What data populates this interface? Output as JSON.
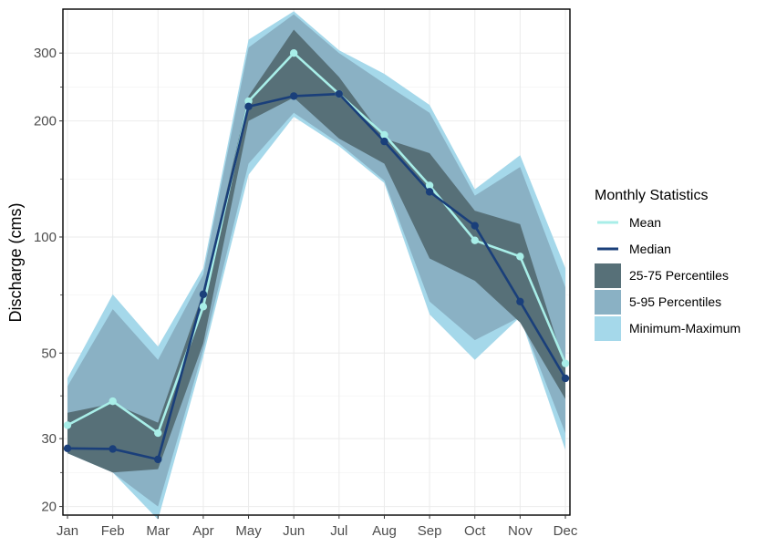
{
  "chart_data": {
    "type": "area",
    "title": "",
    "xlabel": "",
    "ylabel": "Discharge (cms)",
    "y_scale": "log",
    "ylim": [
      19,
      390
    ],
    "yticks": [
      20,
      30,
      50,
      100,
      200,
      300
    ],
    "grid": true,
    "categories": [
      "Jan",
      "Feb",
      "Mar",
      "Apr",
      "May",
      "Jun",
      "Jul",
      "Aug",
      "Sep",
      "Oct",
      "Nov",
      "Dec"
    ],
    "legend": {
      "title": "Monthly Statistics",
      "position": "right",
      "items": [
        {
          "label": "Mean",
          "kind": "line",
          "color": "#a8eee8"
        },
        {
          "label": "Median",
          "kind": "line",
          "color": "#1a3f7a"
        },
        {
          "label": "25-75 Percentiles",
          "kind": "area",
          "color": "#577078"
        },
        {
          "label": "5-95 Percentiles",
          "kind": "area",
          "color": "#8ab1c4"
        },
        {
          "label": "Minimum-Maximum",
          "kind": "area",
          "color": "#a5d8ea"
        }
      ]
    },
    "bands": [
      {
        "name": "Minimum-Maximum",
        "color": "#a5d8ea",
        "lower": [
          27.5,
          24.5,
          18.5,
          49,
          145,
          205,
          172,
          138,
          63,
          48,
          62,
          28
        ],
        "upper": [
          43,
          71,
          52,
          83,
          325,
          385,
          305,
          265,
          220,
          133,
          163,
          83
        ]
      },
      {
        "name": "5-95 Percentiles",
        "color": "#8ab1c4",
        "lower": [
          27.5,
          24.5,
          20,
          51,
          155,
          210,
          175,
          140,
          68,
          54,
          62,
          31
        ],
        "upper": [
          41,
          65,
          48,
          80,
          310,
          378,
          300,
          250,
          210,
          128,
          152,
          74
        ]
      },
      {
        "name": "25-75 Percentiles",
        "color": "#577078",
        "lower": [
          27.5,
          24.5,
          25,
          53,
          200,
          230,
          180,
          155,
          88,
          77,
          60,
          38
        ],
        "upper": [
          35,
          37,
          33,
          72,
          232,
          345,
          260,
          180,
          165,
          117,
          108,
          46
        ]
      }
    ],
    "series": [
      {
        "name": "Mean",
        "color": "#a8eee8",
        "values": [
          32.5,
          37.5,
          31,
          66,
          225,
          300,
          235,
          184,
          136,
          98,
          89,
          47
        ]
      },
      {
        "name": "Median",
        "color": "#1a3f7a",
        "values": [
          28.3,
          28.2,
          26.5,
          71,
          218,
          232,
          235,
          177,
          131,
          107,
          68,
          43
        ]
      }
    ]
  }
}
